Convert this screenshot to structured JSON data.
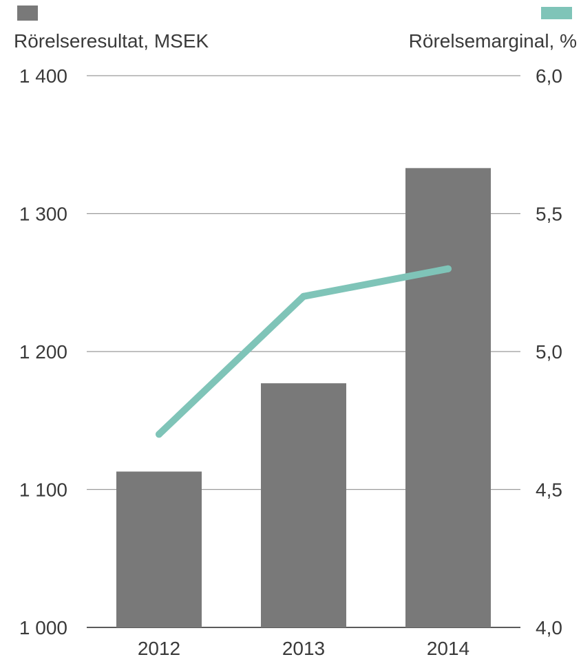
{
  "chart_data": {
    "type": "bar",
    "categories": [
      "2012",
      "2013",
      "2014"
    ],
    "series": [
      {
        "name": "Rörelseresultat, MSEK",
        "type": "bar",
        "axis": "left",
        "color": "#797979",
        "values": [
          1113,
          1177,
          1333
        ]
      },
      {
        "name": "Rörelsemarginal, %",
        "type": "line",
        "axis": "right",
        "color": "#7fc4b8",
        "values": [
          4.7,
          5.2,
          5.3
        ]
      }
    ],
    "left_axis": {
      "ylim": [
        1000,
        1400
      ],
      "ticks": [
        1000,
        1100,
        1200,
        1300,
        1400
      ],
      "tick_labels": [
        "1 000",
        "1 100",
        "1 200",
        "1 300",
        "1 400"
      ]
    },
    "right_axis": {
      "ylim": [
        4.0,
        6.0
      ],
      "ticks": [
        4.0,
        4.5,
        5.0,
        5.5,
        6.0
      ],
      "tick_labels": [
        "4,0",
        "4,5",
        "5,0",
        "5,5",
        "6,0"
      ]
    },
    "grid": true,
    "legend": "top"
  }
}
